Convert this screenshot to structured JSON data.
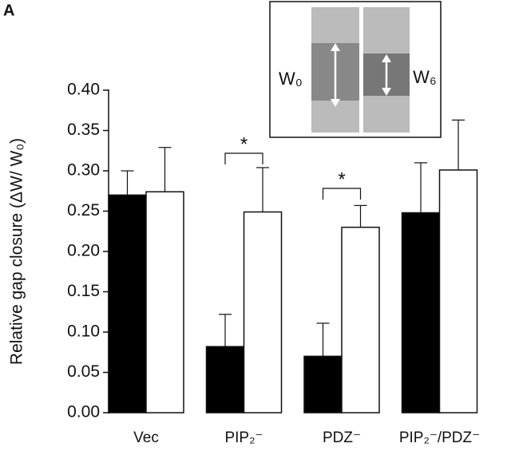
{
  "panel_label": "A",
  "chart_data": {
    "type": "bar",
    "y_label": "Relative gap closure  (ΔW/ W₀)",
    "categories": [
      "Vec",
      "PIP₂⁻",
      "PDZ⁻",
      "PIP₂⁻/PDZ⁻"
    ],
    "series": [
      {
        "color": "#000000",
        "values": [
          0.27,
          0.082,
          0.07,
          0.248
        ],
        "errors": [
          0.03,
          0.04,
          0.041,
          0.062
        ]
      },
      {
        "color": "#ffffff",
        "values": [
          0.274,
          0.249,
          0.23,
          0.301
        ],
        "errors": [
          0.055,
          0.055,
          0.027,
          0.062
        ]
      }
    ],
    "ylim": [
      0,
      0.4
    ],
    "yticks": [
      {
        "value": 0,
        "label": "0.00"
      },
      {
        "value": 0.05,
        "label": "0.05"
      },
      {
        "value": 0.1,
        "label": "0.10"
      },
      {
        "value": 0.15,
        "label": "0.15"
      },
      {
        "value": 0.2,
        "label": "0.20"
      },
      {
        "value": 0.25,
        "label": "0.25"
      },
      {
        "value": 0.3,
        "label": "0.30"
      },
      {
        "value": 0.35,
        "label": "0.35"
      },
      {
        "value": 0.4,
        "label": "0.40"
      }
    ],
    "annotations": [
      "*",
      "*"
    ],
    "inset_labels": [
      "W₀",
      "W₆"
    ]
  }
}
